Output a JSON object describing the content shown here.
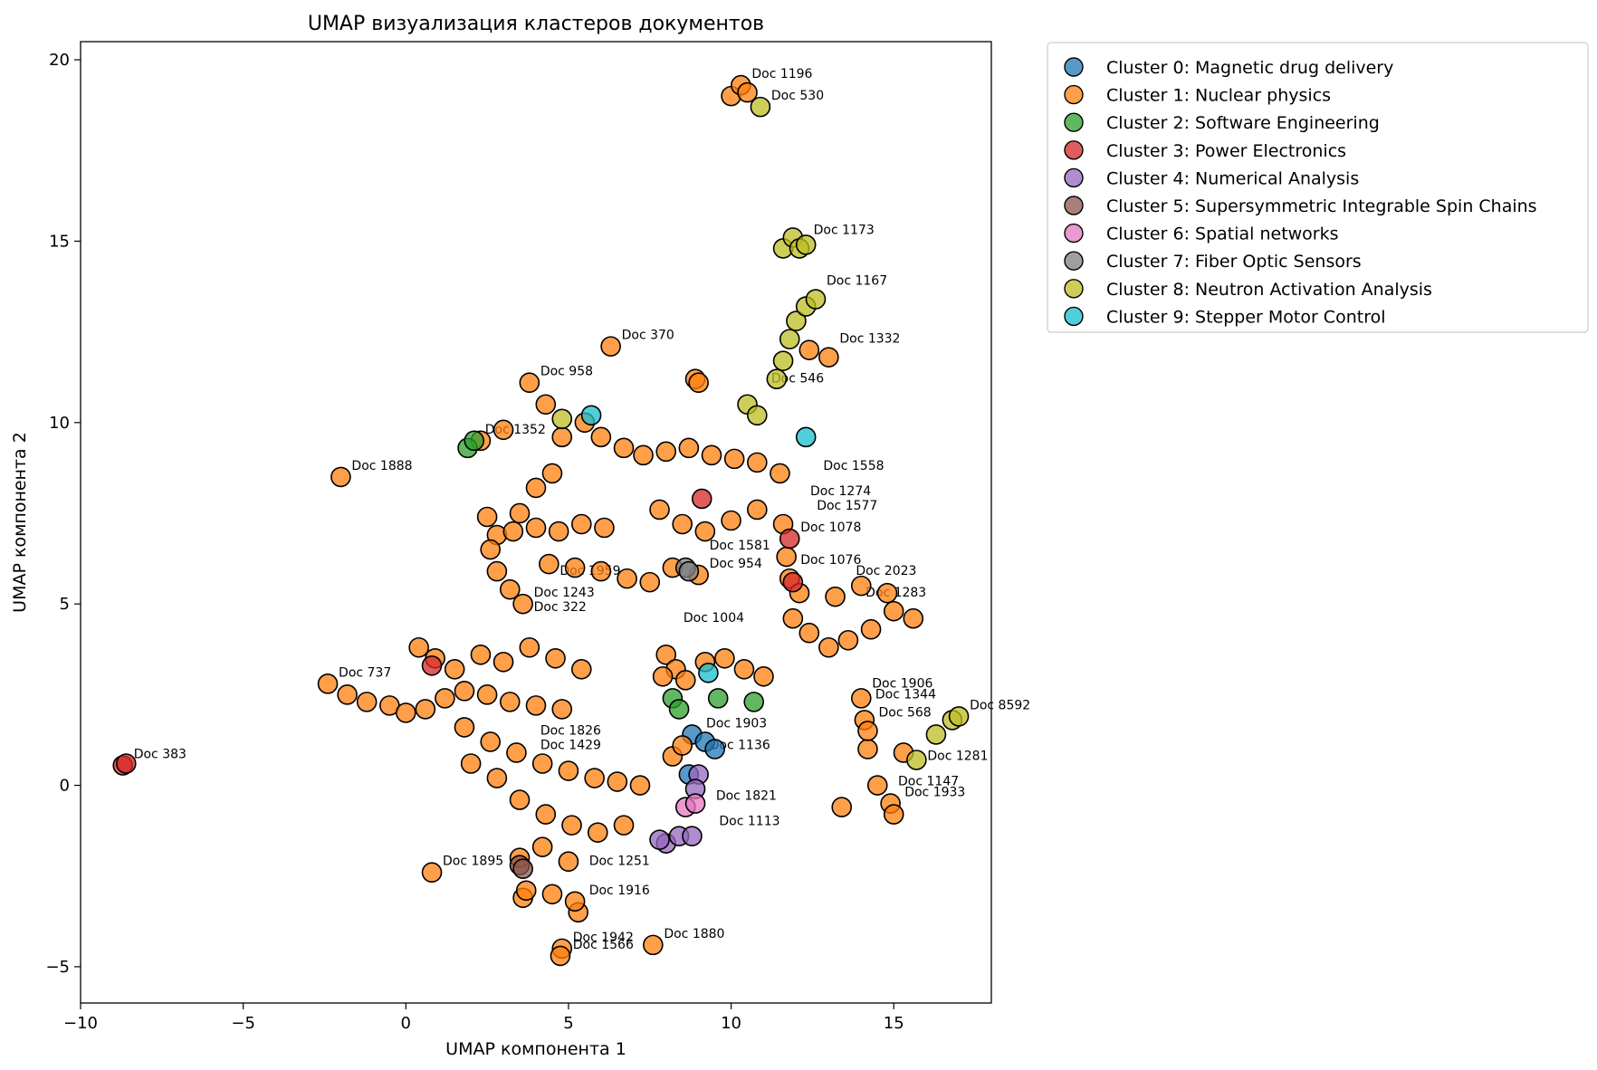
{
  "chart_data": {
    "type": "scatter",
    "title": "UMAP визуализация кластеров документов",
    "xlabel": "UMAP компонента 1",
    "ylabel": "UMAP компонента 2",
    "xlim": [
      -10,
      18
    ],
    "ylim": [
      -6,
      20.5
    ],
    "xticks": [
      -10,
      -5,
      0,
      5,
      10,
      15
    ],
    "yticks": [
      -5,
      0,
      5,
      10,
      15,
      20
    ],
    "grid": false,
    "legend_position": "outside-top-right",
    "series": [
      {
        "name": "Cluster 0: Magnetic drug delivery",
        "color": "#1f77b4",
        "points": [
          [
            8.8,
            1.4
          ],
          [
            9.2,
            1.2
          ],
          [
            8.7,
            0.3
          ],
          [
            9.5,
            1.0
          ]
        ]
      },
      {
        "name": "Cluster 1: Nuclear physics",
        "color": "#ff7f0e",
        "points": [
          [
            -2.4,
            2.8
          ],
          [
            -1.8,
            2.5
          ],
          [
            -1.2,
            2.3
          ],
          [
            -0.5,
            2.2
          ],
          [
            0.0,
            2.0
          ],
          [
            0.6,
            2.1
          ],
          [
            1.2,
            2.4
          ],
          [
            1.8,
            2.6
          ],
          [
            2.5,
            2.5
          ],
          [
            3.2,
            2.3
          ],
          [
            4.0,
            2.2
          ],
          [
            4.8,
            2.1
          ],
          [
            0.4,
            3.8
          ],
          [
            0.9,
            3.5
          ],
          [
            1.5,
            3.2
          ],
          [
            2.3,
            3.6
          ],
          [
            3.0,
            3.4
          ],
          [
            3.8,
            3.8
          ],
          [
            4.6,
            3.5
          ],
          [
            5.4,
            3.2
          ],
          [
            1.8,
            1.6
          ],
          [
            2.6,
            1.2
          ],
          [
            3.4,
            0.9
          ],
          [
            4.2,
            0.6
          ],
          [
            5.0,
            0.4
          ],
          [
            5.8,
            0.2
          ],
          [
            6.5,
            0.1
          ],
          [
            7.2,
            0.0
          ],
          [
            2.0,
            0.6
          ],
          [
            2.8,
            0.2
          ],
          [
            3.5,
            -0.4
          ],
          [
            4.3,
            -0.8
          ],
          [
            5.1,
            -1.1
          ],
          [
            5.9,
            -1.3
          ],
          [
            6.7,
            -1.1
          ],
          [
            3.5,
            -2.0
          ],
          [
            4.2,
            -1.7
          ],
          [
            5.0,
            -2.1
          ],
          [
            3.6,
            -3.1
          ],
          [
            3.7,
            -2.9
          ],
          [
            4.5,
            -3.0
          ],
          [
            5.3,
            -3.5
          ],
          [
            5.2,
            -3.2
          ],
          [
            4.8,
            -4.5
          ],
          [
            4.75,
            -4.7
          ],
          [
            7.6,
            -4.4
          ],
          [
            0.8,
            -2.4
          ],
          [
            -2.0,
            8.5
          ],
          [
            2.3,
            9.5
          ],
          [
            3.0,
            9.8
          ],
          [
            3.8,
            11.1
          ],
          [
            4.3,
            10.5
          ],
          [
            4.8,
            9.6
          ],
          [
            5.5,
            10.0
          ],
          [
            6.0,
            9.6
          ],
          [
            6.7,
            9.3
          ],
          [
            7.3,
            9.1
          ],
          [
            8.0,
            9.2
          ],
          [
            8.7,
            9.3
          ],
          [
            9.4,
            9.1
          ],
          [
            10.1,
            9.0
          ],
          [
            10.8,
            8.9
          ],
          [
            11.5,
            8.6
          ],
          [
            4.5,
            8.6
          ],
          [
            4.0,
            8.2
          ],
          [
            3.5,
            7.5
          ],
          [
            2.5,
            7.4
          ],
          [
            2.8,
            6.9
          ],
          [
            3.3,
            7.0
          ],
          [
            4.0,
            7.1
          ],
          [
            4.7,
            7.0
          ],
          [
            5.4,
            7.2
          ],
          [
            6.1,
            7.1
          ],
          [
            2.6,
            6.5
          ],
          [
            2.8,
            5.9
          ],
          [
            3.2,
            5.4
          ],
          [
            3.6,
            5.0
          ],
          [
            4.4,
            6.1
          ],
          [
            5.2,
            6.0
          ],
          [
            6.0,
            5.9
          ],
          [
            6.8,
            5.7
          ],
          [
            7.5,
            5.6
          ],
          [
            8.2,
            6.0
          ],
          [
            9.0,
            5.8
          ],
          [
            7.8,
            7.6
          ],
          [
            8.5,
            7.2
          ],
          [
            9.2,
            7.0
          ],
          [
            10.0,
            7.3
          ],
          [
            10.8,
            7.6
          ],
          [
            11.6,
            7.2
          ],
          [
            11.7,
            6.3
          ],
          [
            11.8,
            5.7
          ],
          [
            12.1,
            5.3
          ],
          [
            11.9,
            4.6
          ],
          [
            12.4,
            4.2
          ],
          [
            13.0,
            3.8
          ],
          [
            13.6,
            4.0
          ],
          [
            14.3,
            4.3
          ],
          [
            15.0,
            4.8
          ],
          [
            15.6,
            4.6
          ],
          [
            13.2,
            5.2
          ],
          [
            14.0,
            5.5
          ],
          [
            14.8,
            5.3
          ],
          [
            6.3,
            12.1
          ],
          [
            8.9,
            11.2
          ],
          [
            9.0,
            11.1
          ],
          [
            10.0,
            19.0
          ],
          [
            10.3,
            19.3
          ],
          [
            10.5,
            19.1
          ],
          [
            13.4,
            -0.6
          ],
          [
            14.9,
            -0.5
          ],
          [
            15.0,
            -0.8
          ],
          [
            14.5,
            0.0
          ],
          [
            15.3,
            0.9
          ],
          [
            14.2,
            1.0
          ],
          [
            14.0,
            2.4
          ],
          [
            14.1,
            1.8
          ],
          [
            14.2,
            1.5
          ],
          [
            13.0,
            11.8
          ],
          [
            12.4,
            12.0
          ],
          [
            8.0,
            3.6
          ],
          [
            8.3,
            3.2
          ],
          [
            8.6,
            2.9
          ],
          [
            8.2,
            0.8
          ],
          [
            8.5,
            1.1
          ],
          [
            9.2,
            3.4
          ],
          [
            9.8,
            3.5
          ],
          [
            10.4,
            3.2
          ],
          [
            11.0,
            3.0
          ],
          [
            7.9,
            3.0
          ]
        ]
      },
      {
        "name": "Cluster 2: Software Engineering",
        "color": "#2ca02c",
        "points": [
          [
            1.9,
            9.3
          ],
          [
            2.1,
            9.5
          ],
          [
            8.2,
            2.4
          ],
          [
            8.4,
            2.1
          ],
          [
            9.6,
            2.4
          ],
          [
            10.7,
            2.3
          ]
        ]
      },
      {
        "name": "Cluster 3: Power Electronics",
        "color": "#d62728",
        "points": [
          [
            -8.7,
            0.55
          ],
          [
            -8.6,
            0.6
          ],
          [
            0.8,
            3.3
          ],
          [
            11.8,
            6.8
          ],
          [
            11.9,
            5.6
          ],
          [
            9.1,
            7.9
          ]
        ]
      },
      {
        "name": "Cluster 4: Numerical Analysis",
        "color": "#9467bd",
        "points": [
          [
            8.0,
            -1.6
          ],
          [
            8.4,
            -1.4
          ],
          [
            8.8,
            -1.4
          ],
          [
            9.0,
            0.3
          ],
          [
            8.9,
            -0.1
          ],
          [
            7.8,
            -1.5
          ]
        ]
      },
      {
        "name": "Cluster 5: Supersymmetric Integrable Spin Chains",
        "color": "#8c564b",
        "points": [
          [
            3.5,
            -2.2
          ],
          [
            3.6,
            -2.3
          ]
        ]
      },
      {
        "name": "Cluster 6: Spatial networks",
        "color": "#e377c2",
        "points": [
          [
            8.6,
            -0.6
          ],
          [
            8.9,
            -0.5
          ]
        ]
      },
      {
        "name": "Cluster 7: Fiber Optic Sensors",
        "color": "#7f7f7f",
        "points": [
          [
            8.6,
            6.0
          ],
          [
            8.7,
            5.9
          ]
        ]
      },
      {
        "name": "Cluster 8: Neutron Activation Analysis",
        "color": "#bcbd22",
        "points": [
          [
            10.9,
            18.7
          ],
          [
            11.6,
            14.8
          ],
          [
            11.9,
            15.1
          ],
          [
            12.1,
            14.8
          ],
          [
            12.3,
            14.9
          ],
          [
            11.4,
            11.2
          ],
          [
            11.6,
            11.7
          ],
          [
            11.8,
            12.3
          ],
          [
            12.0,
            12.8
          ],
          [
            12.3,
            13.2
          ],
          [
            12.6,
            13.4
          ],
          [
            10.5,
            10.5
          ],
          [
            10.8,
            10.2
          ],
          [
            4.8,
            10.1
          ],
          [
            15.7,
            0.7
          ],
          [
            16.3,
            1.4
          ],
          [
            16.8,
            1.8
          ],
          [
            17.0,
            1.9
          ]
        ]
      },
      {
        "name": "Cluster 9: Stepper Motor Control",
        "color": "#17becf",
        "points": [
          [
            12.3,
            9.6
          ],
          [
            9.3,
            3.1
          ],
          [
            5.7,
            10.2
          ]
        ]
      }
    ],
    "annotations": [
      {
        "text": "Doc 370",
        "x": 6.3,
        "y": 12.1
      },
      {
        "text": "Doc 1888",
        "x": -2.0,
        "y": 8.5
      },
      {
        "text": "Doc 383",
        "x": -8.7,
        "y": 0.55
      },
      {
        "text": "Doc 1895",
        "x": 0.8,
        "y": -2.4
      },
      {
        "text": "Doc 1942",
        "x": 4.8,
        "y": -4.5
      },
      {
        "text": "Doc 1566",
        "x": 4.8,
        "y": -4.7
      },
      {
        "text": "Doc 1880",
        "x": 7.6,
        "y": -4.4
      },
      {
        "text": "Doc 1916",
        "x": 5.3,
        "y": -3.2
      },
      {
        "text": "Doc 1076",
        "x": 11.8,
        "y": 5.9
      },
      {
        "text": "Doc 1078",
        "x": 11.8,
        "y": 6.8
      },
      {
        "text": "Doc 1558",
        "x": 12.5,
        "y": 8.5
      },
      {
        "text": "Doc 1906",
        "x": 14.0,
        "y": 2.5
      },
      {
        "text": "Doc 1344",
        "x": 14.1,
        "y": 2.2
      },
      {
        "text": "Doc 568",
        "x": 14.2,
        "y": 1.7
      },
      {
        "text": "Doc 8592",
        "x": 17.0,
        "y": 1.9
      },
      {
        "text": "Doc 1136",
        "x": 9.0,
        "y": 0.8
      },
      {
        "text": "Doc 1821",
        "x": 9.2,
        "y": -0.6
      },
      {
        "text": "Doc 1196",
        "x": 10.3,
        "y": 19.3
      },
      {
        "text": "Doc 530",
        "x": 10.9,
        "y": 18.7
      },
      {
        "text": "Doc 1173",
        "x": 12.2,
        "y": 15.0
      },
      {
        "text": "Doc 1167",
        "x": 12.6,
        "y": 13.6
      },
      {
        "text": "Doc 1332",
        "x": 13.0,
        "y": 12.0
      },
      {
        "text": "Doc 546",
        "x": 10.9,
        "y": 10.9
      },
      {
        "text": "Doc 1281",
        "x": 15.7,
        "y": 0.5
      },
      {
        "text": "Doc 1147",
        "x": 14.8,
        "y": -0.2
      },
      {
        "text": "Doc 1933",
        "x": 15.0,
        "y": -0.5
      },
      {
        "text": "Doc 737",
        "x": -2.4,
        "y": 2.8
      },
      {
        "text": "Doc 958",
        "x": 3.8,
        "y": 11.1
      },
      {
        "text": "Doc 1352",
        "x": 2.1,
        "y": 9.5
      },
      {
        "text": "Doc 1959",
        "x": 4.4,
        "y": 5.6
      },
      {
        "text": "Doc 1243",
        "x": 3.6,
        "y": 5.0
      },
      {
        "text": "Doc 322",
        "x": 3.6,
        "y": 4.6
      },
      {
        "text": "Doc 1004",
        "x": 8.2,
        "y": 4.3
      },
      {
        "text": "Doc 1274",
        "x": 12.1,
        "y": 7.8
      },
      {
        "text": "Doc 1577",
        "x": 12.3,
        "y": 7.4
      },
      {
        "text": "Doc 1581",
        "x": 9.0,
        "y": 6.3
      },
      {
        "text": "Doc 954",
        "x": 9.0,
        "y": 5.8
      },
      {
        "text": "Doc 2023",
        "x": 13.5,
        "y": 5.6
      },
      {
        "text": "Doc 1283",
        "x": 13.8,
        "y": 5.0
      },
      {
        "text": "Doc 1826",
        "x": 3.8,
        "y": 1.2
      },
      {
        "text": "Doc 1429",
        "x": 3.8,
        "y": 0.8
      },
      {
        "text": "Doc 1903",
        "x": 8.9,
        "y": 1.4
      },
      {
        "text": "Doc 1113",
        "x": 9.3,
        "y": -1.3
      },
      {
        "text": "Doc 1251",
        "x": 5.3,
        "y": -2.4
      }
    ]
  }
}
